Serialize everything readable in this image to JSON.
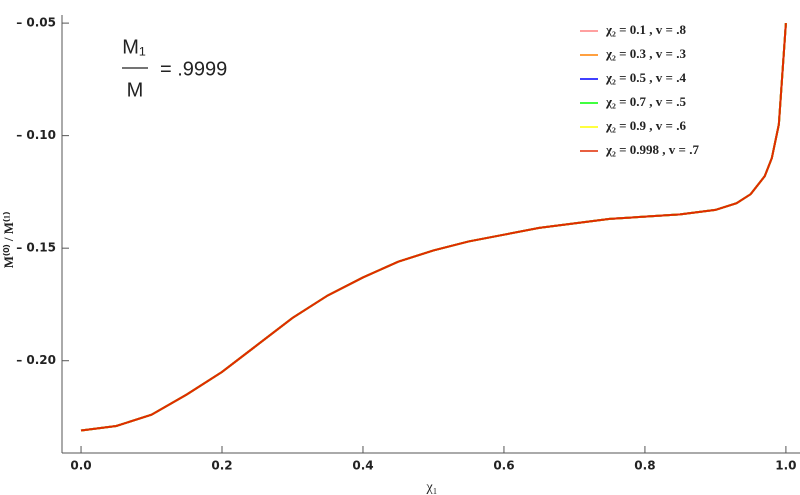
{
  "chart_data": {
    "type": "line",
    "xlabel": "χ₁",
    "ylabel": "M⁽⁰⁾ / M⁽¹⁾",
    "annotation": {
      "numerator": "M₁",
      "denominator": "M",
      "value": "= .9999"
    },
    "x": [
      0,
      0.05,
      0.1,
      0.15,
      0.2,
      0.25,
      0.3,
      0.35,
      0.4,
      0.45,
      0.5,
      0.55,
      0.6,
      0.65,
      0.7,
      0.75,
      0.8,
      0.85,
      0.9,
      0.93,
      0.95,
      0.97,
      0.98,
      0.99,
      1.0
    ],
    "series": [
      {
        "name": "χ₂ = 0.1 , v = .8",
        "color": "#ff8080",
        "values": [
          -0.231,
          -0.229,
          -0.224,
          -0.215,
          -0.205,
          -0.193,
          -0.181,
          -0.171,
          -0.163,
          -0.156,
          -0.151,
          -0.147,
          -0.144,
          -0.141,
          -0.139,
          -0.137,
          -0.136,
          -0.135,
          -0.133,
          -0.13,
          -0.126,
          -0.118,
          -0.11,
          -0.095,
          -0.05
        ]
      },
      {
        "name": "χ₂ = 0.3 , v = .3",
        "color": "#ff8000",
        "values": [
          -0.231,
          -0.229,
          -0.224,
          -0.215,
          -0.205,
          -0.193,
          -0.181,
          -0.171,
          -0.163,
          -0.156,
          -0.151,
          -0.147,
          -0.144,
          -0.141,
          -0.139,
          -0.137,
          -0.136,
          -0.135,
          -0.133,
          -0.13,
          -0.126,
          -0.118,
          -0.11,
          -0.095,
          -0.05
        ]
      },
      {
        "name": "χ₂ = 0.5 , v = .4",
        "color": "#0000ff",
        "values": [
          -0.231,
          -0.229,
          -0.224,
          -0.215,
          -0.205,
          -0.193,
          -0.181,
          -0.171,
          -0.163,
          -0.156,
          -0.151,
          -0.147,
          -0.144,
          -0.141,
          -0.139,
          -0.137,
          -0.136,
          -0.135,
          -0.133,
          -0.13,
          -0.126,
          -0.118,
          -0.11,
          -0.095,
          -0.05
        ]
      },
      {
        "name": "χ₂ = 0.7 , v = .5",
        "color": "#00ff00",
        "values": [
          -0.231,
          -0.229,
          -0.224,
          -0.215,
          -0.205,
          -0.193,
          -0.181,
          -0.171,
          -0.163,
          -0.156,
          -0.151,
          -0.147,
          -0.144,
          -0.141,
          -0.139,
          -0.137,
          -0.136,
          -0.135,
          -0.133,
          -0.13,
          -0.126,
          -0.118,
          -0.11,
          -0.095,
          -0.05
        ]
      },
      {
        "name": "χ₂ = 0.9 , v = .6",
        "color": "#ffff00",
        "values": [
          -0.231,
          -0.229,
          -0.224,
          -0.215,
          -0.205,
          -0.193,
          -0.181,
          -0.171,
          -0.163,
          -0.156,
          -0.151,
          -0.147,
          -0.144,
          -0.141,
          -0.139,
          -0.137,
          -0.136,
          -0.135,
          -0.133,
          -0.13,
          -0.126,
          -0.118,
          -0.11,
          -0.095,
          -0.05
        ]
      },
      {
        "name": "χ₂ = 0.998 , v = .7",
        "color": "#e02a00",
        "values": [
          -0.231,
          -0.229,
          -0.224,
          -0.215,
          -0.205,
          -0.193,
          -0.181,
          -0.171,
          -0.163,
          -0.156,
          -0.151,
          -0.147,
          -0.144,
          -0.141,
          -0.139,
          -0.137,
          -0.136,
          -0.135,
          -0.133,
          -0.13,
          -0.126,
          -0.118,
          -0.11,
          -0.095,
          -0.05
        ]
      }
    ],
    "xlim": [
      -0.027,
      1.02
    ],
    "ylim": [
      -0.241,
      -0.0464
    ],
    "xticks": [
      {
        "value": 0,
        "label": "0.0"
      },
      0.2,
      0.4,
      0.6,
      0.8,
      {
        "value": 1,
        "label": "1.0"
      }
    ],
    "yticks": [
      {
        "value": -0.2,
        "label": "– 0.20"
      },
      {
        "value": -0.15,
        "label": "– 0.15"
      },
      {
        "value": -0.1,
        "label": "– 0.10"
      },
      {
        "value": -0.05,
        "label": "– 0.05"
      }
    ],
    "legend": "top-right"
  }
}
